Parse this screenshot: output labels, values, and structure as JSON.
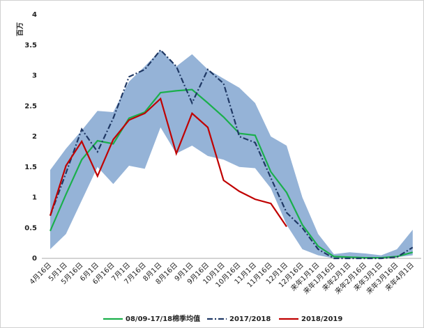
{
  "chart_data": {
    "type": "line",
    "y_unit": "百万",
    "categories": [
      "4月16日",
      "5月1日",
      "5月16日",
      "6月1日",
      "6月16日",
      "7月1日",
      "7月16日",
      "8月1日",
      "8月16日",
      "9月1日",
      "9月16日",
      "10月1日",
      "10月16日",
      "11月1日",
      "11月16日",
      "12月1日",
      "12月16日",
      "来年1月1日",
      "来年1月16日",
      "来年2月1日",
      "来年2月16日",
      "来年3月1日",
      "来年3月16日",
      "来年4月1日"
    ],
    "ylim": [
      0,
      4
    ],
    "yticks": [
      0,
      0.5,
      1,
      1.5,
      2,
      2.5,
      3,
      3.5,
      4
    ],
    "range": {
      "color": "#95b3d7",
      "upper": [
        1.45,
        1.8,
        2.1,
        2.42,
        2.4,
        2.9,
        3.15,
        3.42,
        3.15,
        3.35,
        3.1,
        2.95,
        2.8,
        2.55,
        2.0,
        1.85,
        1.0,
        0.4,
        0.07,
        0.1,
        0.08,
        0.05,
        0.15,
        0.47
      ],
      "lower": [
        0.15,
        0.4,
        0.95,
        1.5,
        1.22,
        1.52,
        1.47,
        2.15,
        1.72,
        1.85,
        1.68,
        1.62,
        1.5,
        1.48,
        1.15,
        0.55,
        0.15,
        0.05,
        0,
        0,
        0,
        0,
        0.02,
        0.05
      ]
    },
    "series": [
      {
        "name": "08/09-17/18棉季均值",
        "color": "#1aaf4b",
        "dash": "solid",
        "values": [
          0.45,
          1.05,
          1.62,
          1.93,
          1.88,
          2.3,
          2.4,
          2.72,
          2.75,
          2.77,
          2.55,
          2.32,
          2.05,
          2.02,
          1.42,
          1.08,
          0.55,
          0.2,
          0.03,
          0.02,
          0.01,
          0.01,
          0.03,
          0.1
        ]
      },
      {
        "name": "2017/2018",
        "color": "#1f3864",
        "dash": "dashdot",
        "values": [
          0.7,
          1.4,
          2.12,
          1.75,
          2.3,
          2.98,
          3.1,
          3.42,
          3.15,
          2.55,
          3.1,
          2.87,
          2.0,
          1.9,
          1.32,
          0.75,
          0.5,
          0.15,
          0,
          0,
          0,
          0,
          0.02,
          0.18
        ]
      },
      {
        "name": "2018/2019",
        "color": "#c00000",
        "dash": "solid",
        "values": [
          0.7,
          1.52,
          1.92,
          1.35,
          1.95,
          2.27,
          2.38,
          2.62,
          1.72,
          2.38,
          2.15,
          1.28,
          1.1,
          0.97,
          0.9,
          0.52,
          null,
          null,
          null,
          null,
          null,
          null,
          null,
          null
        ]
      }
    ]
  }
}
